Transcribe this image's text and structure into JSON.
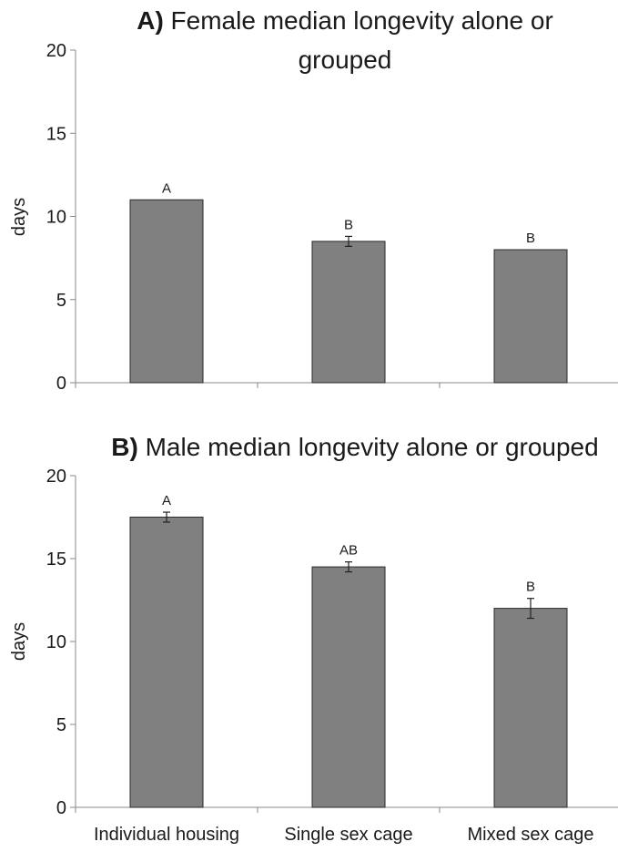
{
  "chart_data": [
    {
      "type": "bar",
      "title_prefix": "A)",
      "title_lines": [
        "Female median longevity alone or",
        "grouped"
      ],
      "ylabel": "days",
      "ylim": [
        0,
        20
      ],
      "yticks": [
        0,
        5,
        10,
        15,
        20
      ],
      "categories": [
        "Individual housing",
        "Single sex cage",
        "Mixed sex cage"
      ],
      "show_category_labels": false,
      "values": [
        11,
        8.5,
        8
      ],
      "errors": [
        0,
        0.3,
        0
      ],
      "significance": [
        "A",
        "B",
        "B"
      ]
    },
    {
      "type": "bar",
      "title_prefix": "B)",
      "title_lines": [
        "Male median longevity alone or grouped"
      ],
      "ylabel": "days",
      "ylim": [
        0,
        20
      ],
      "yticks": [
        0,
        5,
        10,
        15,
        20
      ],
      "categories": [
        "Individual housing",
        "Single sex cage",
        "Mixed sex cage"
      ],
      "show_category_labels": true,
      "values": [
        17.5,
        14.5,
        12
      ],
      "errors": [
        0.3,
        0.3,
        0.6
      ],
      "significance": [
        "A",
        "AB",
        "B"
      ]
    }
  ]
}
